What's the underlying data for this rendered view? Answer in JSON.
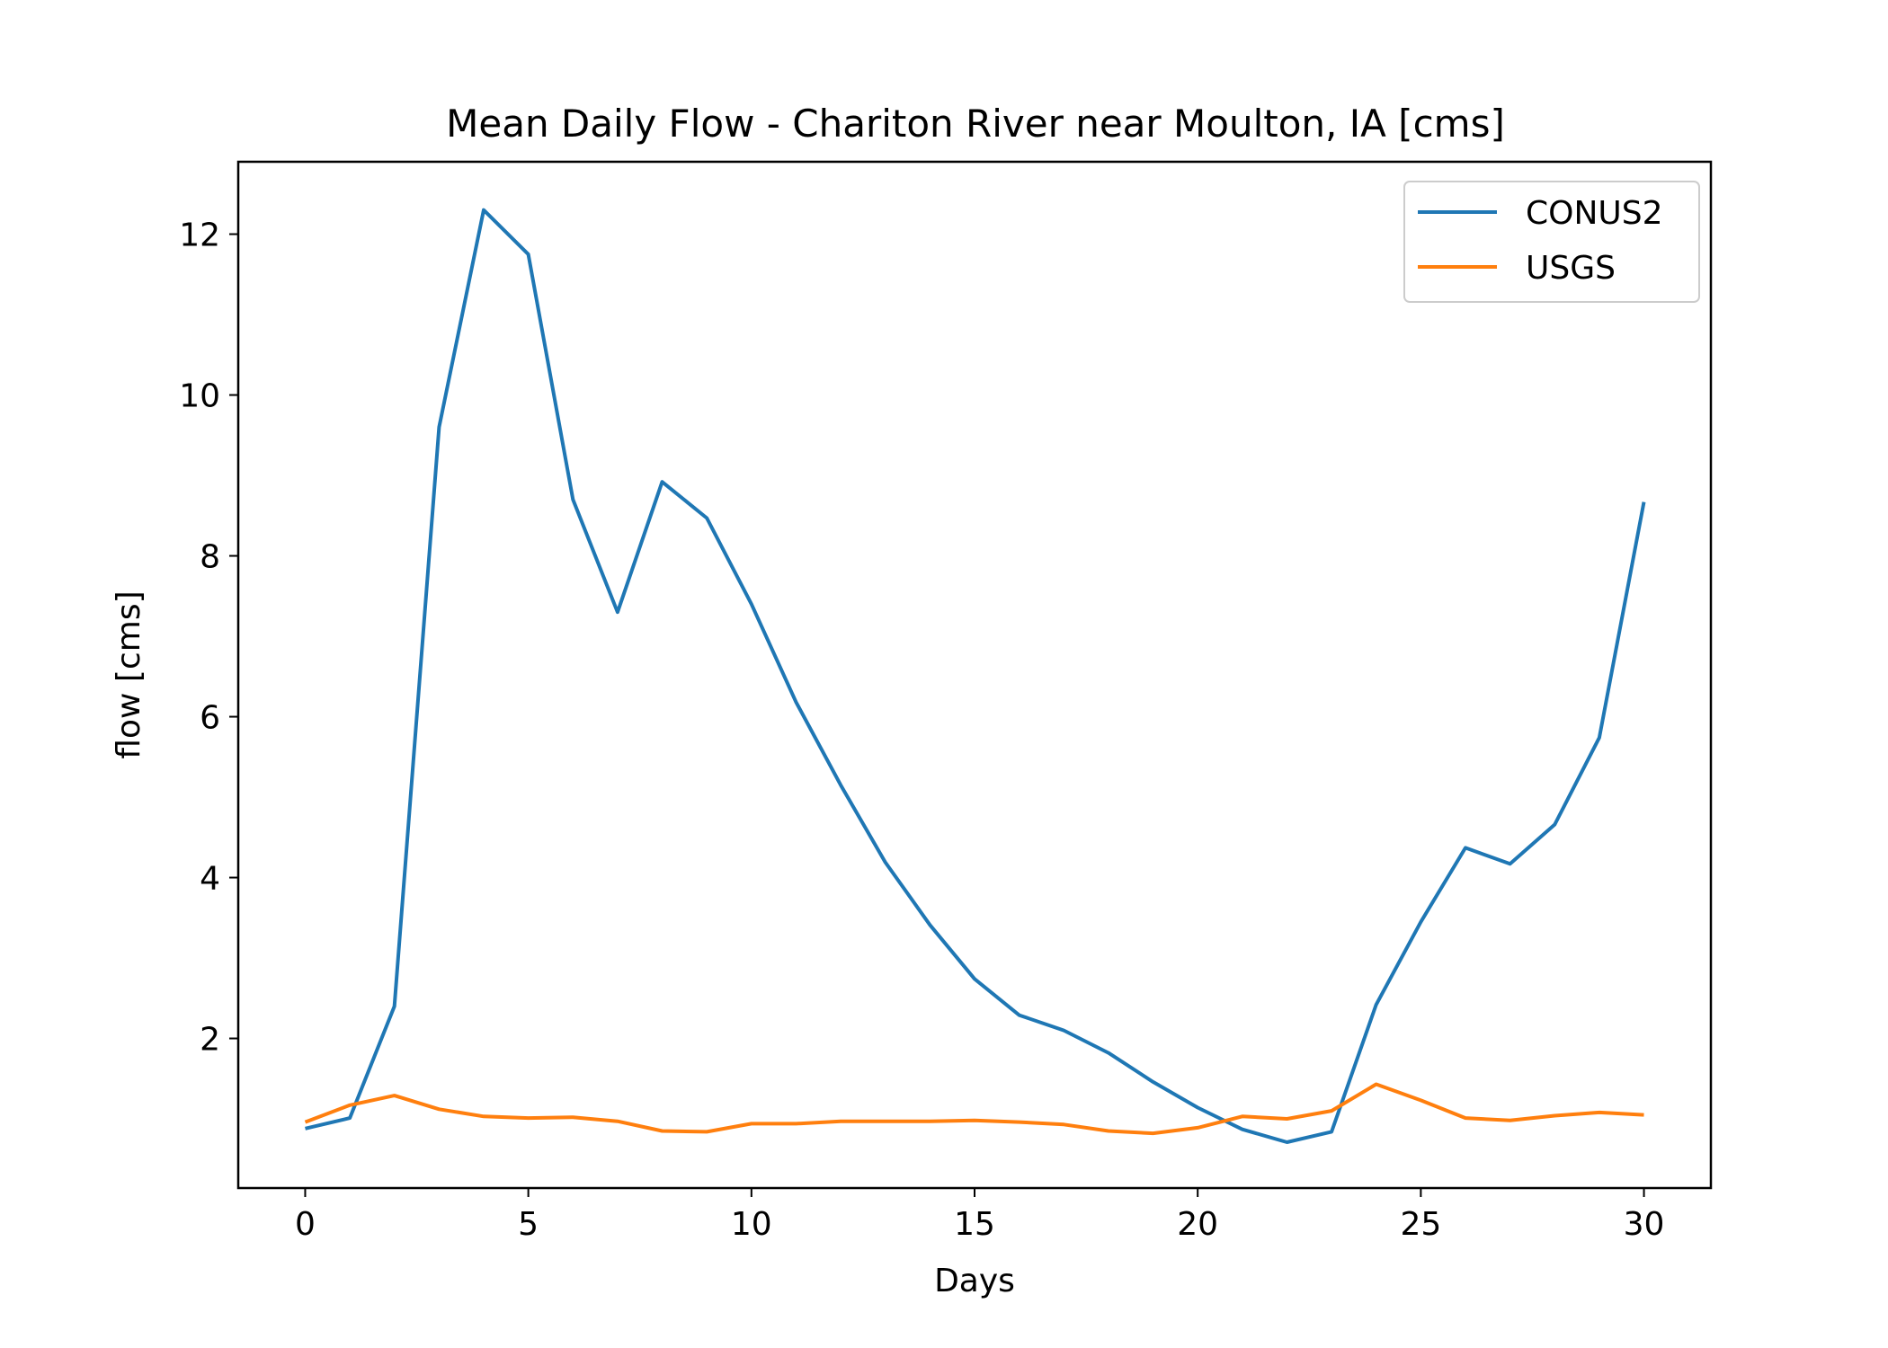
{
  "chart_data": {
    "type": "line",
    "title": "Mean Daily Flow - Chariton River near Moulton, IA [cms]",
    "xlabel": "Days",
    "ylabel": "flow [cms]",
    "xlim": [
      -1.5,
      31.5
    ],
    "ylim": [
      0.14,
      12.9
    ],
    "xticks": [
      0,
      5,
      10,
      15,
      20,
      25,
      30
    ],
    "yticks": [
      2,
      4,
      6,
      8,
      10,
      12
    ],
    "grid": false,
    "legend_position": "top-right",
    "x": [
      0,
      1,
      2,
      3,
      4,
      5,
      6,
      7,
      8,
      9,
      10,
      11,
      12,
      13,
      14,
      15,
      16,
      17,
      18,
      19,
      20,
      21,
      22,
      23,
      24,
      25,
      26,
      27,
      28,
      29,
      30
    ],
    "series": [
      {
        "name": "CONUS2",
        "color": "#1f77b4",
        "values": [
          0.88,
          1.01,
          2.4,
          9.6,
          12.3,
          11.75,
          8.7,
          7.3,
          8.92,
          8.47,
          7.4,
          6.18,
          5.15,
          4.19,
          3.41,
          2.74,
          2.29,
          2.1,
          1.82,
          1.46,
          1.14,
          0.87,
          0.71,
          0.84,
          2.42,
          3.45,
          4.37,
          4.17,
          4.66,
          5.74,
          8.67
        ]
      },
      {
        "name": "USGS",
        "color": "#ff7f0e",
        "values": [
          0.96,
          1.17,
          1.29,
          1.12,
          1.03,
          1.01,
          1.02,
          0.97,
          0.85,
          0.84,
          0.94,
          0.94,
          0.97,
          0.97,
          0.97,
          0.98,
          0.96,
          0.93,
          0.85,
          0.82,
          0.89,
          1.03,
          1.0,
          1.1,
          1.43,
          1.23,
          1.01,
          0.98,
          1.04,
          1.08,
          1.05
        ]
      }
    ]
  }
}
